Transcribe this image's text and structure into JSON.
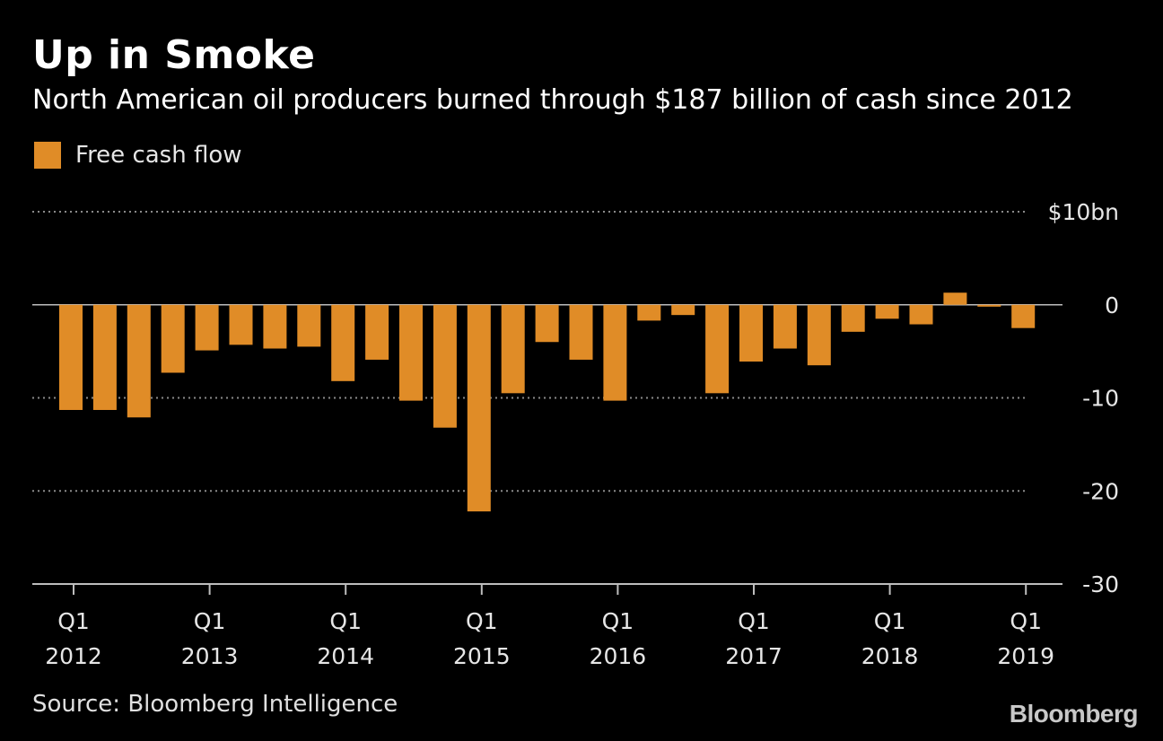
{
  "header": {
    "title": "Up in Smoke",
    "subtitle": "North American oil producers burned through $187 billion of cash since 2012"
  },
  "footer": {
    "source": "Source: Bloomberg Intelligence",
    "brand": "Bloomberg"
  },
  "colors": {
    "background": "#000000",
    "bar": "#e08c27",
    "grid": "#8a8a8a",
    "axis": "#bdbdbd",
    "tick_text": "#e6e6e6"
  },
  "chart_data": {
    "type": "bar",
    "title": "Up in Smoke",
    "subtitle": "North American oil producers burned through $187 billion of cash since 2012",
    "series": [
      {
        "name": "Free cash flow",
        "values": [
          -11.3,
          -11.3,
          -12.1,
          -7.3,
          -4.9,
          -4.3,
          -4.7,
          -4.5,
          -8.2,
          -5.9,
          -10.3,
          -13.2,
          -22.2,
          -9.5,
          -4.0,
          -5.9,
          -10.3,
          -1.7,
          -1.1,
          -9.5,
          -6.1,
          -4.7,
          -6.5,
          -2.9,
          -1.5,
          -2.1,
          1.3,
          -0.2,
          -2.5
        ]
      }
    ],
    "categories": [
      "Q1 2012",
      "Q2 2012",
      "Q3 2012",
      "Q4 2012",
      "Q1 2013",
      "Q2 2013",
      "Q3 2013",
      "Q4 2013",
      "Q1 2014",
      "Q2 2014",
      "Q3 2014",
      "Q4 2014",
      "Q1 2015",
      "Q2 2015",
      "Q3 2015",
      "Q4 2015",
      "Q1 2016",
      "Q2 2016",
      "Q3 2016",
      "Q4 2016",
      "Q1 2017",
      "Q2 2017",
      "Q3 2017",
      "Q4 2017",
      "Q1 2018",
      "Q2 2018",
      "Q3 2018",
      "Q4 2018",
      "Q1 2019"
    ],
    "x_tick_labels": [
      {
        "index": 0,
        "line1": "Q1",
        "line2": "2012"
      },
      {
        "index": 4,
        "line1": "Q1",
        "line2": "2013"
      },
      {
        "index": 8,
        "line1": "Q1",
        "line2": "2014"
      },
      {
        "index": 12,
        "line1": "Q1",
        "line2": "2015"
      },
      {
        "index": 16,
        "line1": "Q1",
        "line2": "2016"
      },
      {
        "index": 20,
        "line1": "Q1",
        "line2": "2017"
      },
      {
        "index": 24,
        "line1": "Q1",
        "line2": "2018"
      },
      {
        "index": 28,
        "line1": "Q1",
        "line2": "2019"
      }
    ],
    "y_ticks": [
      {
        "value": 10,
        "label": "$10bn"
      },
      {
        "value": 0,
        "label": "0"
      },
      {
        "value": -10,
        "label": "-10"
      },
      {
        "value": -20,
        "label": "-20"
      },
      {
        "value": -30,
        "label": "-30"
      }
    ],
    "ylim": [
      -30,
      10
    ],
    "ylabel": "",
    "xlabel": "",
    "grid": true,
    "legend_position": "top-left"
  }
}
